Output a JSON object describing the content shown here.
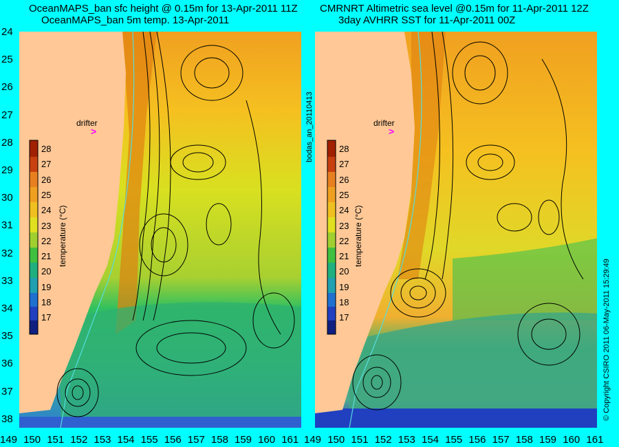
{
  "left_panel": {
    "title_line1": "OceanMAPS_ban sfc height @ 0.15m for 13-Apr-2011 11Z",
    "title_line2": "OceanMAPS_ban 5m temp. 13-Apr-2011"
  },
  "right_panel": {
    "title_line1": "CMRNRT Altimetric sea level  @0.15m  for 11-Apr-2011 12Z",
    "title_line2": "3day AVHRR SST for 11-Apr-2011 00Z"
  },
  "latitude_ticks": [
    "24",
    "25",
    "26",
    "27",
    "28",
    "29",
    "30",
    "31",
    "32",
    "33",
    "34",
    "35",
    "36",
    "37",
    "38"
  ],
  "longitude_ticks": [
    "149",
    "150",
    "151",
    "152",
    "153",
    "154",
    "155",
    "156",
    "157",
    "158",
    "159",
    "160",
    "161"
  ],
  "colorbar": {
    "title": "temperature (°C)",
    "ticks": [
      "28",
      "27",
      "26",
      "25",
      "24",
      "23",
      "22",
      "21",
      "20",
      "19",
      "18",
      "17"
    ],
    "range": [
      16,
      29
    ]
  },
  "drifter_label": "drifter",
  "drifter_symbol": ">",
  "side_label": "bodas_an_20110413",
  "copyright": "© Copyright CSIRO 2011   06-May-2011 15:29:49",
  "colors": {
    "background": "#00ffff",
    "land": "#ffc896",
    "drifter": "#ff00ff",
    "contour": "#000000",
    "isobath": "#55dddd"
  }
}
